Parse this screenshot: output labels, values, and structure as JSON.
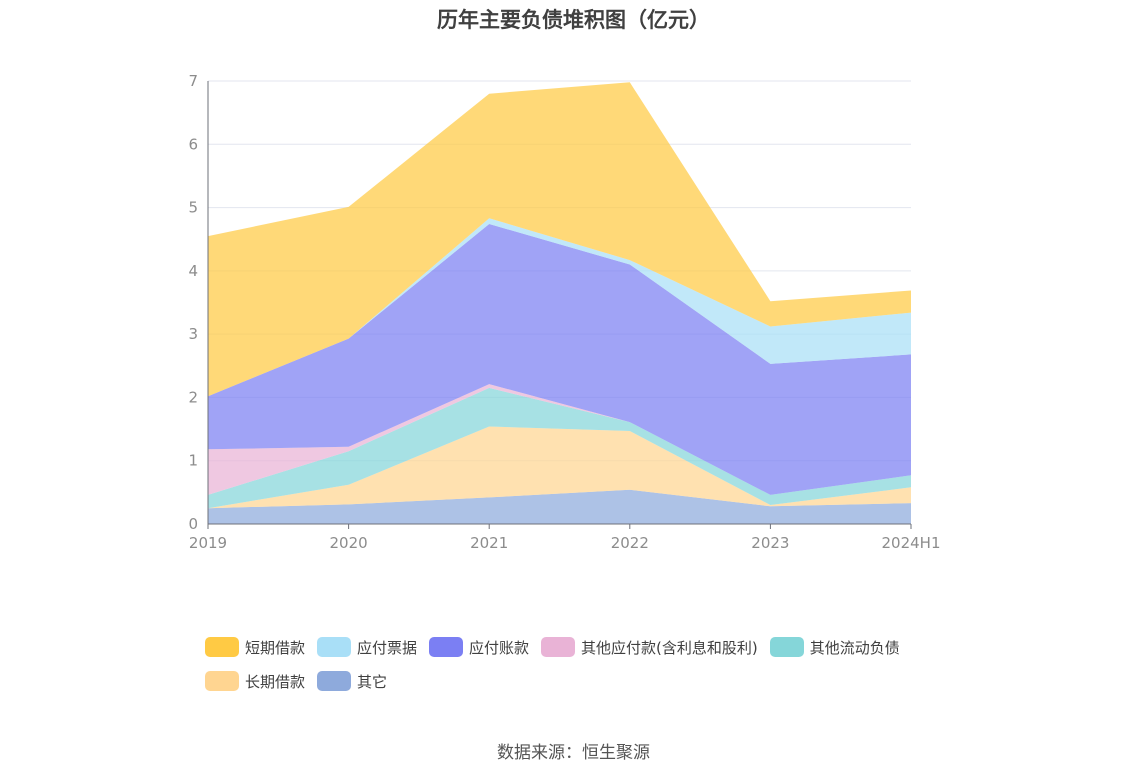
{
  "title": "历年主要负债堆积图（亿元）",
  "source": "数据来源：恒生聚源",
  "chart_data": {
    "type": "area",
    "stacked": true,
    "title": "历年主要负债堆积图（亿元）",
    "categories": [
      "2019",
      "2020",
      "2021",
      "2022",
      "2023",
      "2024H1"
    ],
    "ylim": [
      0,
      7
    ],
    "yticks": [
      "0",
      "1",
      "2",
      "3",
      "4",
      "5",
      "6",
      "7"
    ],
    "grid": true,
    "legend_position": "bottom",
    "series": [
      {
        "name": "其它",
        "color": "#8eaadc",
        "values": [
          0.25,
          0.31,
          0.42,
          0.54,
          0.28,
          0.33
        ]
      },
      {
        "name": "长期借款",
        "color": "#ffd591",
        "values": [
          0.0,
          0.31,
          1.12,
          0.93,
          0.02,
          0.25
        ]
      },
      {
        "name": "其他流动负债",
        "color": "#85d6d9",
        "values": [
          0.21,
          0.53,
          0.61,
          0.14,
          0.16,
          0.19
        ]
      },
      {
        "name": "其他应付款(含利息和股利)",
        "color": "#e9b3d6",
        "values": [
          0.72,
          0.07,
          0.06,
          0.0,
          0.0,
          0.0
        ]
      },
      {
        "name": "应付账款",
        "color": "#7b7ff3",
        "values": [
          0.84,
          1.71,
          2.53,
          2.49,
          2.07,
          1.91
        ]
      },
      {
        "name": "应付票据",
        "color": "#a9dff7",
        "values": [
          0.0,
          0.0,
          0.09,
          0.07,
          0.59,
          0.66
        ]
      },
      {
        "name": "短期借款",
        "color": "#ffca44",
        "values": [
          2.53,
          2.08,
          1.97,
          2.81,
          0.4,
          0.35
        ]
      }
    ]
  },
  "legend_order": [
    "短期借款",
    "应付票据",
    "应付账款",
    "其他应付款(含利息和股利)",
    "其他流动负债",
    "长期借款",
    "其它"
  ]
}
